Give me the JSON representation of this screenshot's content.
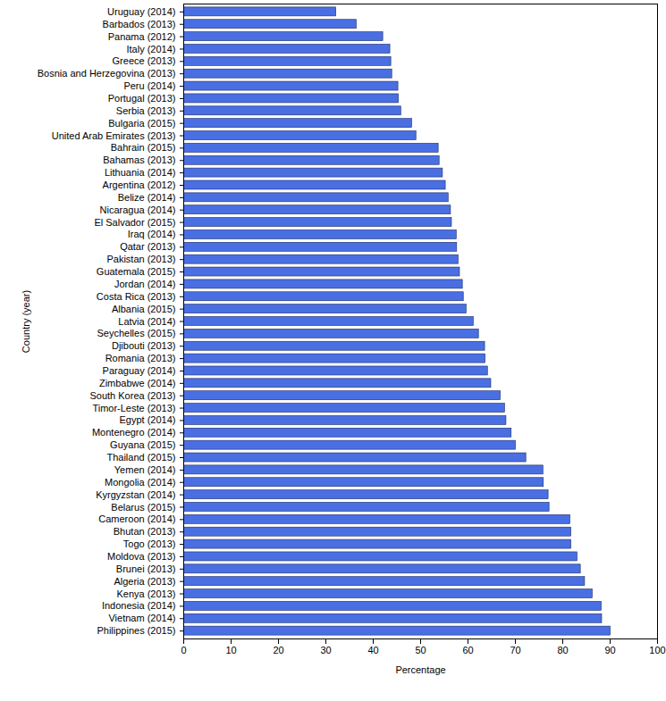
{
  "chart_data": {
    "type": "bar",
    "orientation": "horizontal",
    "x_label": "Percentage",
    "y_label": "Country (year)",
    "categories": [
      "Uruguay (2014)",
      "Barbados (2013)",
      "Panama (2012)",
      "Italy (2014)",
      "Greece (2013)",
      "Bosnia and Herzegovina (2013)",
      "Peru (2014)",
      "Portugal (2013)",
      "Serbia (2013)",
      "Bulgaria (2015)",
      "United Arab Emirates (2013)",
      "Bahrain (2015)",
      "Bahamas (2013)",
      "Lithuania (2014)",
      "Argentina (2012)",
      "Belize (2014)",
      "Nicaragua (2014)",
      "El Salvador (2015)",
      "Iraq (2014)",
      "Qatar (2013)",
      "Pakistan (2013)",
      "Guatemala (2015)",
      "Jordan (2014)",
      "Costa Rica (2013)",
      "Albania (2015)",
      "Latvia (2014)",
      "Seychelles (2015)",
      "Djibouti (2013)",
      "Romania (2013)",
      "Paraguay (2014)",
      "Zimbabwe (2014)",
      "South Korea (2013)",
      "Timor-Leste (2013)",
      "Egypt (2014)",
      "Montenegro (2014)",
      "Guyana (2015)",
      "Thailand (2015)",
      "Yemen (2014)",
      "Mongolia (2014)",
      "Kyrgyzstan (2014)",
      "Belarus (2015)",
      "Cameroon (2014)",
      "Bhutan (2013)",
      "Togo (2013)",
      "Moldova (2013)",
      "Brunei (2013)",
      "Algeria (2013)",
      "Kenya (2013)",
      "Indonesia (2014)",
      "Vietnam (2014)",
      "Philippines (2015)"
    ],
    "values": [
      32.2,
      36.5,
      42.1,
      43.6,
      43.8,
      44.0,
      45.3,
      45.4,
      45.9,
      48.2,
      49.1,
      53.8,
      54.0,
      54.7,
      55.3,
      55.9,
      56.4,
      56.6,
      57.6,
      57.7,
      58.0,
      58.3,
      58.9,
      59.1,
      59.7,
      61.2,
      62.3,
      63.6,
      63.7,
      64.2,
      64.9,
      66.9,
      67.8,
      68.1,
      69.2,
      70.1,
      72.3,
      75.9,
      76.0,
      77.0,
      77.2,
      81.6,
      81.8,
      81.8,
      83.1,
      83.8,
      84.7,
      86.3,
      88.2,
      88.3,
      90.1
    ],
    "color": "#4a6fe3",
    "xlim": [
      0,
      100
    ],
    "xticks": [
      0,
      10,
      20,
      30,
      40,
      50,
      60,
      70,
      80,
      90,
      100
    ],
    "grid": false
  }
}
